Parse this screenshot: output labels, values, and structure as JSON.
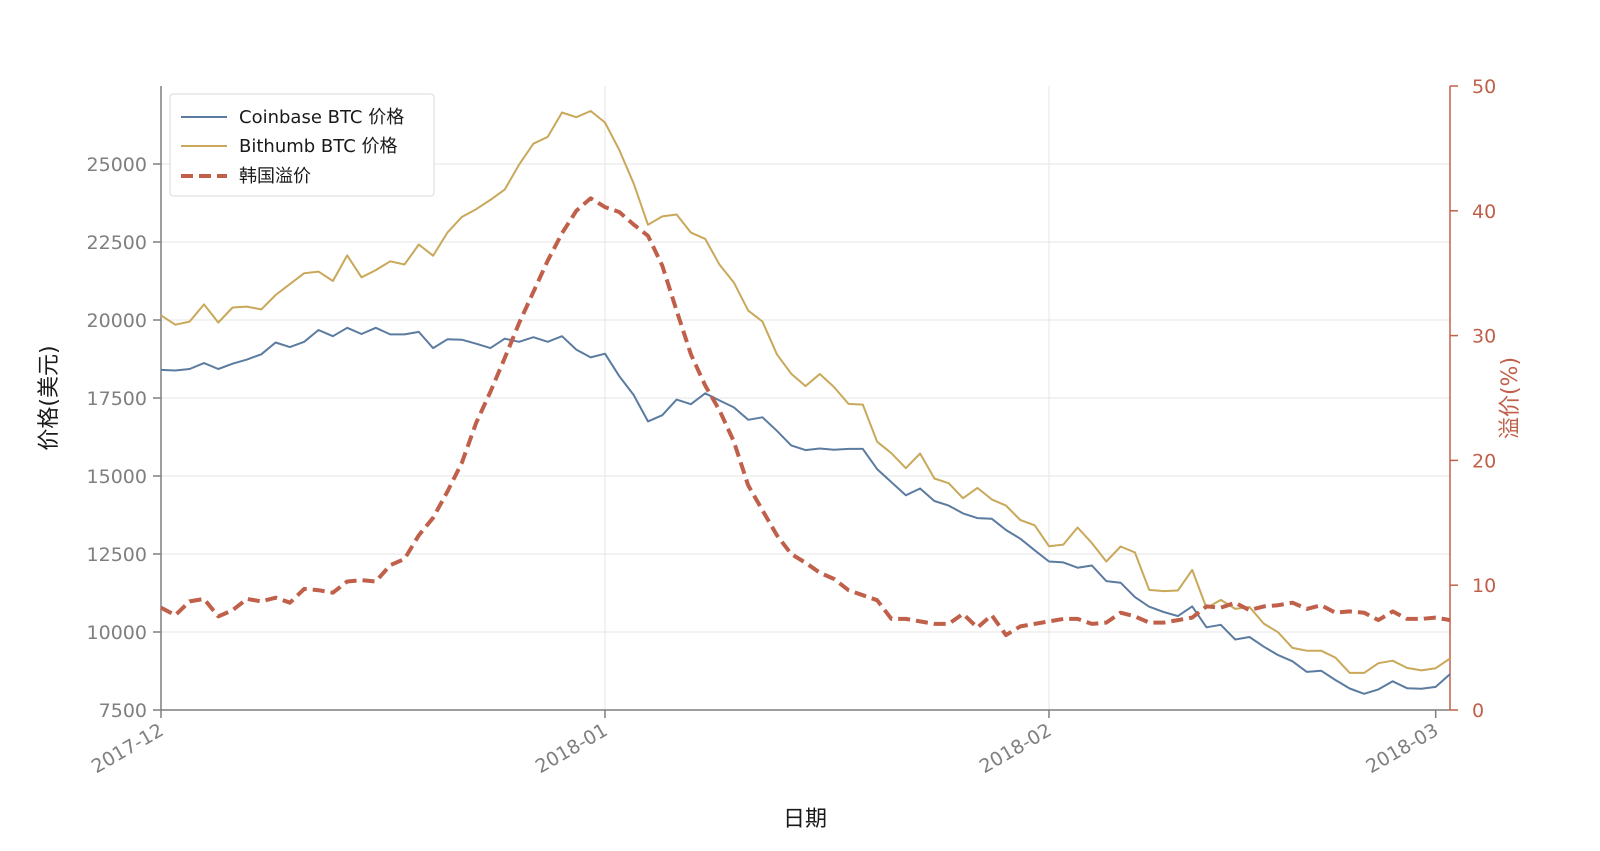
{
  "chart_data": {
    "type": "line",
    "xlabel": "日期",
    "ylabel": "价格(美元)",
    "y2label": "溢价(%)",
    "x_ticks": [
      "2017-12",
      "2018-01",
      "2018-02",
      "2018-03"
    ],
    "x_tick_days": [
      0,
      31,
      62,
      89
    ],
    "x_range": [
      "2017-12-01",
      "2018-03-01"
    ],
    "ylim": [
      7500,
      27500
    ],
    "y_ticks": [
      7500,
      10000,
      12500,
      15000,
      17500,
      20000,
      22500,
      25000
    ],
    "y2lim": [
      0,
      50
    ],
    "y2_ticks": [
      0,
      10,
      20,
      30,
      40,
      50
    ],
    "grid": true,
    "legend_position": "top-left",
    "colors": {
      "coinbase": "#5b7ba0",
      "bithumb": "#c9a85a",
      "premium": "#c0604a",
      "axis": "#7f7f7f",
      "grid": "#e6e6e6"
    },
    "series": [
      {
        "name": "Coinbase BTC 价格",
        "axis": "left",
        "style": "solid",
        "x": [
          "2017-12-01",
          "2017-12-02",
          "2017-12-03",
          "2017-12-04",
          "2017-12-05",
          "2017-12-06",
          "2017-12-07",
          "2017-12-08",
          "2017-12-09",
          "2017-12-10",
          "2017-12-11",
          "2017-12-12",
          "2017-12-13",
          "2017-12-14",
          "2017-12-15",
          "2017-12-16",
          "2017-12-17",
          "2017-12-18",
          "2017-12-19",
          "2017-12-20",
          "2017-12-21",
          "2017-12-22",
          "2017-12-23",
          "2017-12-24",
          "2017-12-25",
          "2017-12-26",
          "2017-12-27",
          "2017-12-28",
          "2017-12-29",
          "2017-12-30",
          "2017-12-31",
          "2018-01-01",
          "2018-01-02",
          "2018-01-03",
          "2018-01-04",
          "2018-01-05",
          "2018-01-06",
          "2018-01-07",
          "2018-01-08",
          "2018-01-09",
          "2018-01-10",
          "2018-01-11",
          "2018-01-12",
          "2018-01-13",
          "2018-01-14",
          "2018-01-15",
          "2018-01-16",
          "2018-01-17",
          "2018-01-18",
          "2018-01-19",
          "2018-01-20",
          "2018-01-21",
          "2018-01-22",
          "2018-01-23",
          "2018-01-24",
          "2018-01-25",
          "2018-01-26",
          "2018-01-27",
          "2018-01-28",
          "2018-01-29",
          "2018-01-30",
          "2018-01-31",
          "2018-02-01",
          "2018-02-02",
          "2018-02-03",
          "2018-02-04",
          "2018-02-05",
          "2018-02-06",
          "2018-02-07",
          "2018-02-08",
          "2018-02-09",
          "2018-02-10",
          "2018-02-11",
          "2018-02-12",
          "2018-02-13",
          "2018-02-14",
          "2018-02-15",
          "2018-02-16",
          "2018-02-17",
          "2018-02-18",
          "2018-02-19",
          "2018-02-20",
          "2018-02-21",
          "2018-02-22",
          "2018-02-23",
          "2018-02-24",
          "2018-02-25",
          "2018-02-26",
          "2018-02-27",
          "2018-02-28",
          "2018-03-01"
        ],
        "values": [
          18400,
          18380,
          18430,
          18620,
          18430,
          18600,
          18730,
          18900,
          19280,
          19130,
          19300,
          19680,
          19480,
          19750,
          19550,
          19750,
          19540,
          19540,
          19620,
          19100,
          19380,
          19370,
          19240,
          19100,
          19400,
          19300,
          19450,
          19300,
          19480,
          19050,
          18800,
          18920,
          18200,
          17600,
          16750,
          16950,
          17450,
          17300,
          17650,
          17420,
          17200,
          16800,
          16880,
          16450,
          15980,
          15830,
          15880,
          15840,
          15870,
          15870,
          15220,
          14800,
          14380,
          14600,
          14200,
          14050,
          13800,
          13650,
          13630,
          13270,
          12990,
          12620,
          12260,
          12230,
          12060,
          12130,
          11630,
          11580,
          11120,
          10810,
          10640,
          10510,
          10820,
          10150,
          10230,
          9760,
          9840,
          9530,
          9260,
          9060,
          8720,
          8760,
          8460,
          8190,
          8020,
          8160,
          8420,
          8200,
          8180,
          8240,
          8650
        ]
      },
      {
        "name": "Bithumb BTC 价格",
        "axis": "left",
        "style": "solid",
        "x": [
          "2017-12-01",
          "2017-12-02",
          "2017-12-03",
          "2017-12-04",
          "2017-12-05",
          "2017-12-06",
          "2017-12-07",
          "2017-12-08",
          "2017-12-09",
          "2017-12-10",
          "2017-12-11",
          "2017-12-12",
          "2017-12-13",
          "2017-12-14",
          "2017-12-15",
          "2017-12-16",
          "2017-12-17",
          "2017-12-18",
          "2017-12-19",
          "2017-12-20",
          "2017-12-21",
          "2017-12-22",
          "2017-12-23",
          "2017-12-24",
          "2017-12-25",
          "2017-12-26",
          "2017-12-27",
          "2017-12-28",
          "2017-12-29",
          "2017-12-30",
          "2017-12-31",
          "2018-01-01",
          "2018-01-02",
          "2018-01-03",
          "2018-01-04",
          "2018-01-05",
          "2018-01-06",
          "2018-01-07",
          "2018-01-08",
          "2018-01-09",
          "2018-01-10",
          "2018-01-11",
          "2018-01-12",
          "2018-01-13",
          "2018-01-14",
          "2018-01-15",
          "2018-01-16",
          "2018-01-17",
          "2018-01-18",
          "2018-01-19",
          "2018-01-20",
          "2018-01-21",
          "2018-01-22",
          "2018-01-23",
          "2018-01-24",
          "2018-01-25",
          "2018-01-26",
          "2018-01-27",
          "2018-01-28",
          "2018-01-29",
          "2018-01-30",
          "2018-01-31",
          "2018-02-01",
          "2018-02-02",
          "2018-02-03",
          "2018-02-04",
          "2018-02-05",
          "2018-02-06",
          "2018-02-07",
          "2018-02-08",
          "2018-02-09",
          "2018-02-10",
          "2018-02-11",
          "2018-02-12",
          "2018-02-13",
          "2018-02-14",
          "2018-02-15",
          "2018-02-16",
          "2018-02-17",
          "2018-02-18",
          "2018-02-19",
          "2018-02-20",
          "2018-02-21",
          "2018-02-22",
          "2018-02-23",
          "2018-02-24",
          "2018-02-25",
          "2018-02-26",
          "2018-02-27",
          "2018-02-28",
          "2018-03-01"
        ],
        "values": [
          20150,
          19850,
          19950,
          20500,
          19920,
          20400,
          20430,
          20340,
          20800,
          21150,
          21500,
          21550,
          21250,
          22070,
          21370,
          21600,
          21880,
          21780,
          22420,
          22060,
          22800,
          23300,
          23550,
          23850,
          24180,
          24980,
          25650,
          25870,
          26650,
          26500,
          26700,
          26330,
          25450,
          24380,
          23050,
          23320,
          23380,
          22800,
          22600,
          21770,
          21200,
          20300,
          19950,
          18900,
          18280,
          17880,
          18270,
          17850,
          17310,
          17290,
          16100,
          15730,
          15250,
          15720,
          14920,
          14770,
          14290,
          14620,
          14250,
          14050,
          13590,
          13420,
          12750,
          12800,
          13350,
          12850,
          12260,
          12740,
          12550,
          11350,
          11310,
          11330,
          11990,
          10770,
          11030,
          10740,
          10800,
          10270,
          9990,
          9490,
          9400,
          9400,
          9180,
          8690,
          8690,
          9000,
          9080,
          8850,
          8770,
          8840,
          9150
        ]
      },
      {
        "name": "韩国溢价",
        "axis": "right",
        "style": "dashed",
        "x": [
          "2017-12-01",
          "2017-12-02",
          "2017-12-03",
          "2017-12-04",
          "2017-12-05",
          "2017-12-06",
          "2017-12-07",
          "2017-12-08",
          "2017-12-09",
          "2017-12-10",
          "2017-12-11",
          "2017-12-12",
          "2017-12-13",
          "2017-12-14",
          "2017-12-15",
          "2017-12-16",
          "2017-12-17",
          "2017-12-18",
          "2017-12-19",
          "2017-12-20",
          "2017-12-21",
          "2017-12-22",
          "2017-12-23",
          "2017-12-24",
          "2017-12-25",
          "2017-12-26",
          "2017-12-27",
          "2017-12-28",
          "2017-12-29",
          "2017-12-30",
          "2017-12-31",
          "2018-01-01",
          "2018-01-02",
          "2018-01-03",
          "2018-01-04",
          "2018-01-05",
          "2018-01-06",
          "2018-01-07",
          "2018-01-08",
          "2018-01-09",
          "2018-01-10",
          "2018-01-11",
          "2018-01-12",
          "2018-01-13",
          "2018-01-14",
          "2018-01-15",
          "2018-01-16",
          "2018-01-17",
          "2018-01-18",
          "2018-01-19",
          "2018-01-20",
          "2018-01-21",
          "2018-01-22",
          "2018-01-23",
          "2018-01-24",
          "2018-01-25",
          "2018-01-26",
          "2018-01-27",
          "2018-01-28",
          "2018-01-29",
          "2018-01-30",
          "2018-01-31",
          "2018-02-01",
          "2018-02-02",
          "2018-02-03",
          "2018-02-04",
          "2018-02-05",
          "2018-02-06",
          "2018-02-07",
          "2018-02-08",
          "2018-02-09",
          "2018-02-10",
          "2018-02-11",
          "2018-02-12",
          "2018-02-13",
          "2018-02-14",
          "2018-02-15",
          "2018-02-16",
          "2018-02-17",
          "2018-02-18",
          "2018-02-19",
          "2018-02-20",
          "2018-02-21",
          "2018-02-22",
          "2018-02-23",
          "2018-02-24",
          "2018-02-25",
          "2018-02-26",
          "2018-02-27",
          "2018-02-28",
          "2018-03-01"
        ],
        "values": [
          8.2,
          7.6,
          8.7,
          8.9,
          7.5,
          8.0,
          8.9,
          8.7,
          9.0,
          8.6,
          9.7,
          9.6,
          9.4,
          10.3,
          10.4,
          10.3,
          11.6,
          12.1,
          14.0,
          15.4,
          17.5,
          19.8,
          23.0,
          25.5,
          28.2,
          31.0,
          33.5,
          36.0,
          38.2,
          40.0,
          41.0,
          40.3,
          39.9,
          38.9,
          38.0,
          35.6,
          32.0,
          28.5,
          26.0,
          24.0,
          21.5,
          18.0,
          16.0,
          14.0,
          12.5,
          11.8,
          11.0,
          10.5,
          9.6,
          9.2,
          8.8,
          7.3,
          7.3,
          7.1,
          6.9,
          6.9,
          7.7,
          6.6,
          7.6,
          6.0,
          6.7,
          6.9,
          7.1,
          7.3,
          7.3,
          6.9,
          7.0,
          7.8,
          7.5,
          7.0,
          7.0,
          7.2,
          7.4,
          8.3,
          8.2,
          8.6,
          8.0,
          8.3,
          8.4,
          8.6,
          8.1,
          8.4,
          7.8,
          7.9,
          7.8,
          7.2,
          7.9,
          7.3,
          7.3,
          7.4,
          7.2
        ]
      }
    ]
  }
}
